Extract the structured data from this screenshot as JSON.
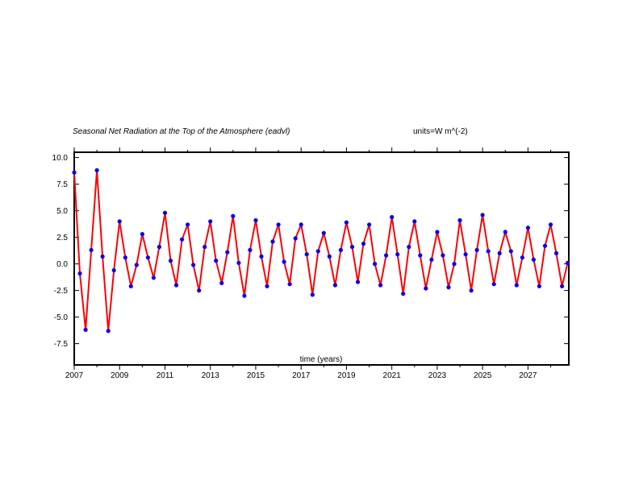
{
  "chart_data": {
    "type": "line",
    "title": "Seasonal Net Radiation at the Top of the Atmosphere (eadvl)",
    "units": "units=W m^(-2)",
    "xlabel": "time (years)",
    "ylabel": "",
    "xlim": [
      2007,
      2028.8
    ],
    "ylim": [
      -9.5,
      10.5
    ],
    "xticks": [
      2007,
      2009,
      2011,
      2013,
      2015,
      2017,
      2019,
      2021,
      2023,
      2025,
      2027
    ],
    "xtick_labels": [
      "2007",
      "2009",
      "2011",
      "2013",
      "2015",
      "2017",
      "2019",
      "2021",
      "2023",
      "2025",
      "2027"
    ],
    "yticks": [
      10.0,
      7.5,
      5.0,
      2.5,
      0.0,
      -2.5,
      -5.0,
      -7.5
    ],
    "ytick_labels": [
      "10.0",
      "7.5",
      "5.0",
      "2.5",
      "0.0",
      "-2.5",
      "-5.0",
      "-7.5"
    ],
    "grid": false,
    "line_color": "#ff0000",
    "marker_color": "#0000ff",
    "series": [
      {
        "x": [
          2007.0,
          2007.25,
          2007.5,
          2007.75,
          2008.0,
          2008.25,
          2008.5,
          2008.75,
          2009.0,
          2009.25,
          2009.5,
          2009.75,
          2010.0,
          2010.25,
          2010.5,
          2010.75,
          2011.0,
          2011.25,
          2011.5,
          2011.75,
          2012.0,
          2012.25,
          2012.5,
          2012.75,
          2013.0,
          2013.25,
          2013.5,
          2013.75,
          2014.0,
          2014.25,
          2014.5,
          2014.75,
          2015.0,
          2015.25,
          2015.5,
          2015.75,
          2016.0,
          2016.25,
          2016.5,
          2016.75,
          2017.0,
          2017.25,
          2017.5,
          2017.75,
          2018.0,
          2018.25,
          2018.5,
          2018.75,
          2019.0,
          2019.25,
          2019.5,
          2019.75,
          2020.0,
          2020.25,
          2020.5,
          2020.75,
          2021.0,
          2021.25,
          2021.5,
          2021.75,
          2022.0,
          2022.25,
          2022.5,
          2022.75,
          2023.0,
          2023.25,
          2023.5,
          2023.75,
          2024.0,
          2024.25,
          2024.5,
          2024.75,
          2025.0,
          2025.25,
          2025.5,
          2025.75,
          2026.0,
          2026.25,
          2026.5,
          2026.75,
          2027.0,
          2027.25,
          2027.5,
          2027.75,
          2028.0,
          2028.25,
          2028.5,
          2028.75
        ],
        "y": [
          8.6,
          -0.9,
          -6.2,
          1.3,
          8.8,
          0.7,
          -6.3,
          -0.6,
          4.0,
          0.6,
          -2.1,
          -0.1,
          2.8,
          0.6,
          -1.3,
          1.6,
          4.8,
          0.3,
          -2.0,
          2.3,
          3.7,
          -0.1,
          -2.5,
          1.6,
          4.0,
          0.3,
          -1.8,
          1.1,
          4.5,
          0.1,
          -3.0,
          1.3,
          4.1,
          0.7,
          -2.1,
          2.1,
          3.7,
          0.2,
          -1.9,
          2.4,
          3.7,
          0.9,
          -2.9,
          1.2,
          2.9,
          0.7,
          -2.0,
          1.3,
          3.9,
          1.6,
          -1.7,
          1.9,
          3.7,
          0.0,
          -2.0,
          0.8,
          4.4,
          0.9,
          -2.8,
          1.6,
          4.0,
          0.8,
          -2.3,
          0.4,
          3.0,
          0.8,
          -2.2,
          0.0,
          4.1,
          0.9,
          -2.5,
          1.3,
          4.6,
          1.2,
          -1.9,
          1.0,
          3.0,
          1.2,
          -2.0,
          0.6,
          3.4,
          0.4,
          -2.1,
          1.7,
          3.7,
          1.0,
          -2.1,
          0.1
        ]
      }
    ]
  }
}
